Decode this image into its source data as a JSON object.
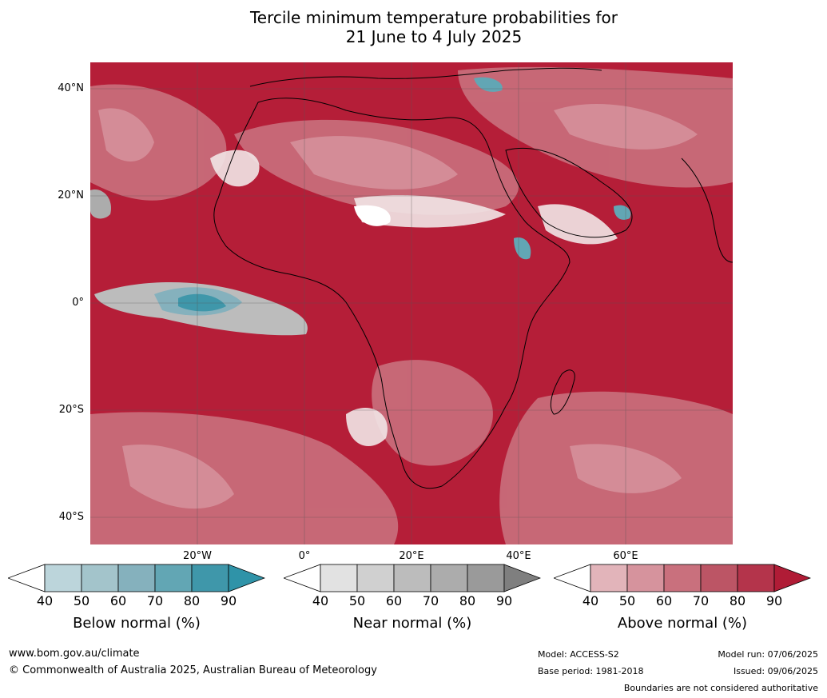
{
  "title_line1": "Tercile minimum temperature probabilities for",
  "title_line2": "21 June to 4 July 2025",
  "lat_labels": [
    "40°N",
    "20°N",
    "0°",
    "20°S",
    "40°S"
  ],
  "lon_labels": [
    "20°W",
    "0°",
    "20°E",
    "40°E",
    "60°E"
  ],
  "colorbars": [
    {
      "title": "Below normal (%)",
      "ticks": [
        "40",
        "50",
        "60",
        "70",
        "80",
        "90"
      ],
      "colors": [
        "#ffffff",
        "#bcd5db",
        "#a3c4cb",
        "#85b1bd",
        "#62a6b4",
        "#3f97aa",
        "#2f93a8"
      ]
    },
    {
      "title": "Near normal (%)",
      "ticks": [
        "40",
        "50",
        "60",
        "70",
        "80",
        "90"
      ],
      "colors": [
        "#ffffff",
        "#e2e2e2",
        "#d0d0d0",
        "#bcbcbc",
        "#acacac",
        "#9a9a9a",
        "#7f7f7f"
      ]
    },
    {
      "title": "Above normal (%)",
      "ticks": [
        "40",
        "50",
        "60",
        "70",
        "80",
        "90"
      ],
      "colors": [
        "#ffffff",
        "#e2b4ba",
        "#d6939d",
        "#c9707d",
        "#bc5565",
        "#b4344b",
        "#b01c36"
      ]
    }
  ],
  "footer": {
    "url": "www.bom.gov.au/climate",
    "copyright": "© Commonwealth of Australia 2025, Australian Bureau of Meteorology",
    "model": "Model: ACCESS-S2",
    "base_period": "Base period: 1981-2018",
    "model_run": "Model run: 07/06/2025",
    "issued": "Issued: 09/06/2025",
    "disclaimer": "Boundaries are not considered authoritative"
  },
  "colors": {
    "above_90": "#b51e38",
    "near_40": "#e2e2e2",
    "below_90": "#3f97aa"
  }
}
